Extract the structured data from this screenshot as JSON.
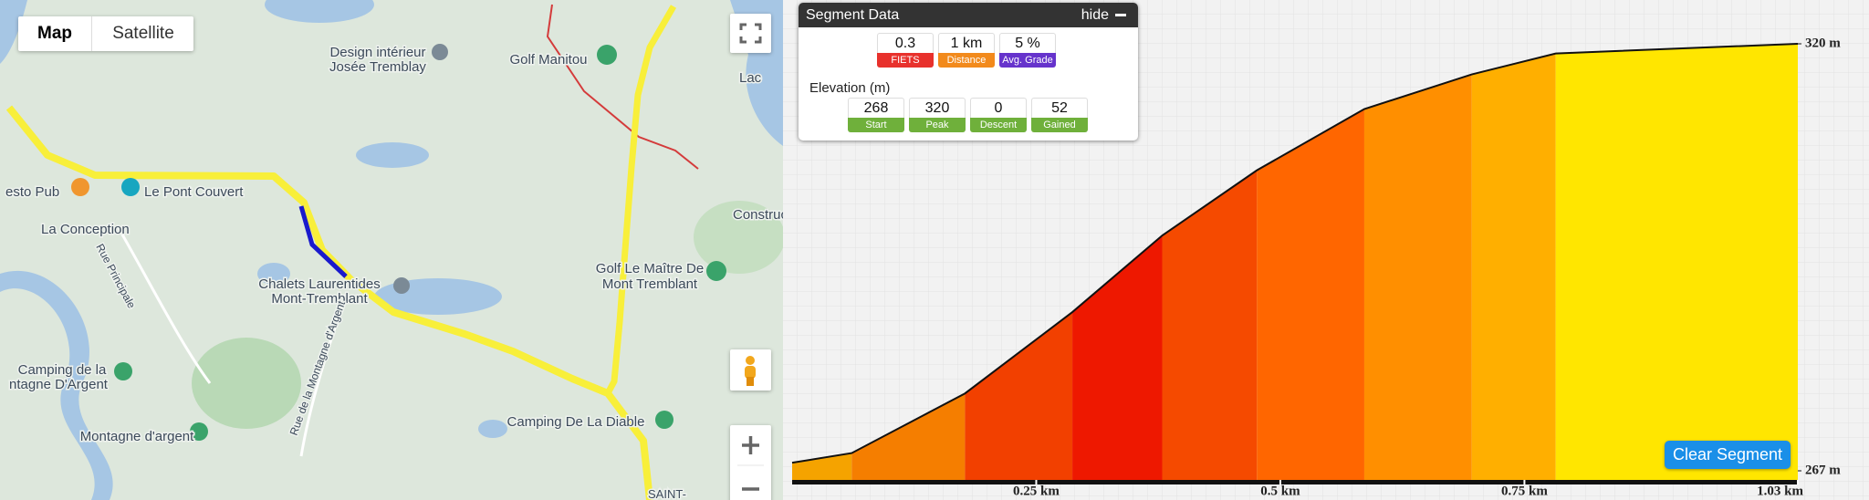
{
  "map": {
    "controls": {
      "map": "Map",
      "satellite": "Satellite"
    },
    "labels": [
      "Design intérieur",
      "Josée Tremblay",
      "Golf Manitou",
      "esto Pub",
      "Le Pont Couvert",
      "La Conception",
      "Rue Principale",
      "Chalets Laurentides",
      "Mont-Tremblant",
      "Golf Le Maître De",
      "Mont Tremblant",
      "Construc",
      "Camping de la",
      "ntagne D'Argent",
      "Rue de la Montagne d'Argent",
      "Montagne d'argent",
      "Camping De La Diable",
      "SAINT-",
      "Lac"
    ]
  },
  "segment_panel": {
    "title": "Segment Data",
    "hide": "hide",
    "stats": [
      {
        "value": 0.3,
        "label": "FIETS"
      },
      {
        "value": "1 km",
        "label": "Distance"
      },
      {
        "value": "5 %",
        "label": "Avg. Grade"
      }
    ],
    "elevation_title": "Elevation (m)",
    "elevation": [
      {
        "value": 268,
        "label": "Start"
      },
      {
        "value": 320,
        "label": "Peak"
      },
      {
        "value": 0,
        "label": "Descent"
      },
      {
        "value": 52,
        "label": "Gained"
      }
    ]
  },
  "chart_data": {
    "type": "area",
    "x": [
      0,
      0.061,
      0.177,
      0.287,
      0.379,
      0.476,
      0.586,
      0.696,
      0.782,
      1.03
    ],
    "values": [
      268,
      269.2,
      276.6,
      286.7,
      296.2,
      304.3,
      311.9,
      316.2,
      318.8,
      320
    ],
    "segment_colors": [
      "#f5a300",
      "#f57e00",
      "#f24000",
      "#ee1800",
      "#f54a00",
      "#ff6600",
      "#ff8f00",
      "#ffaf00",
      "#ffe600"
    ],
    "xlim": [
      0,
      1.03
    ],
    "xticks": [
      {
        "value": 0.25,
        "label": "0.25 km"
      },
      {
        "value": 0.5,
        "label": "0.5 km"
      },
      {
        "value": 0.75,
        "label": "0.75 km"
      },
      {
        "value": 1.03,
        "label": "1.03 km"
      }
    ],
    "ylim": [
      267,
      320
    ],
    "yticks": [
      {
        "value": 267,
        "label": "267 m"
      },
      {
        "value": 320,
        "label": "320 m"
      }
    ],
    "grid": true
  },
  "button": "Clear Segment"
}
